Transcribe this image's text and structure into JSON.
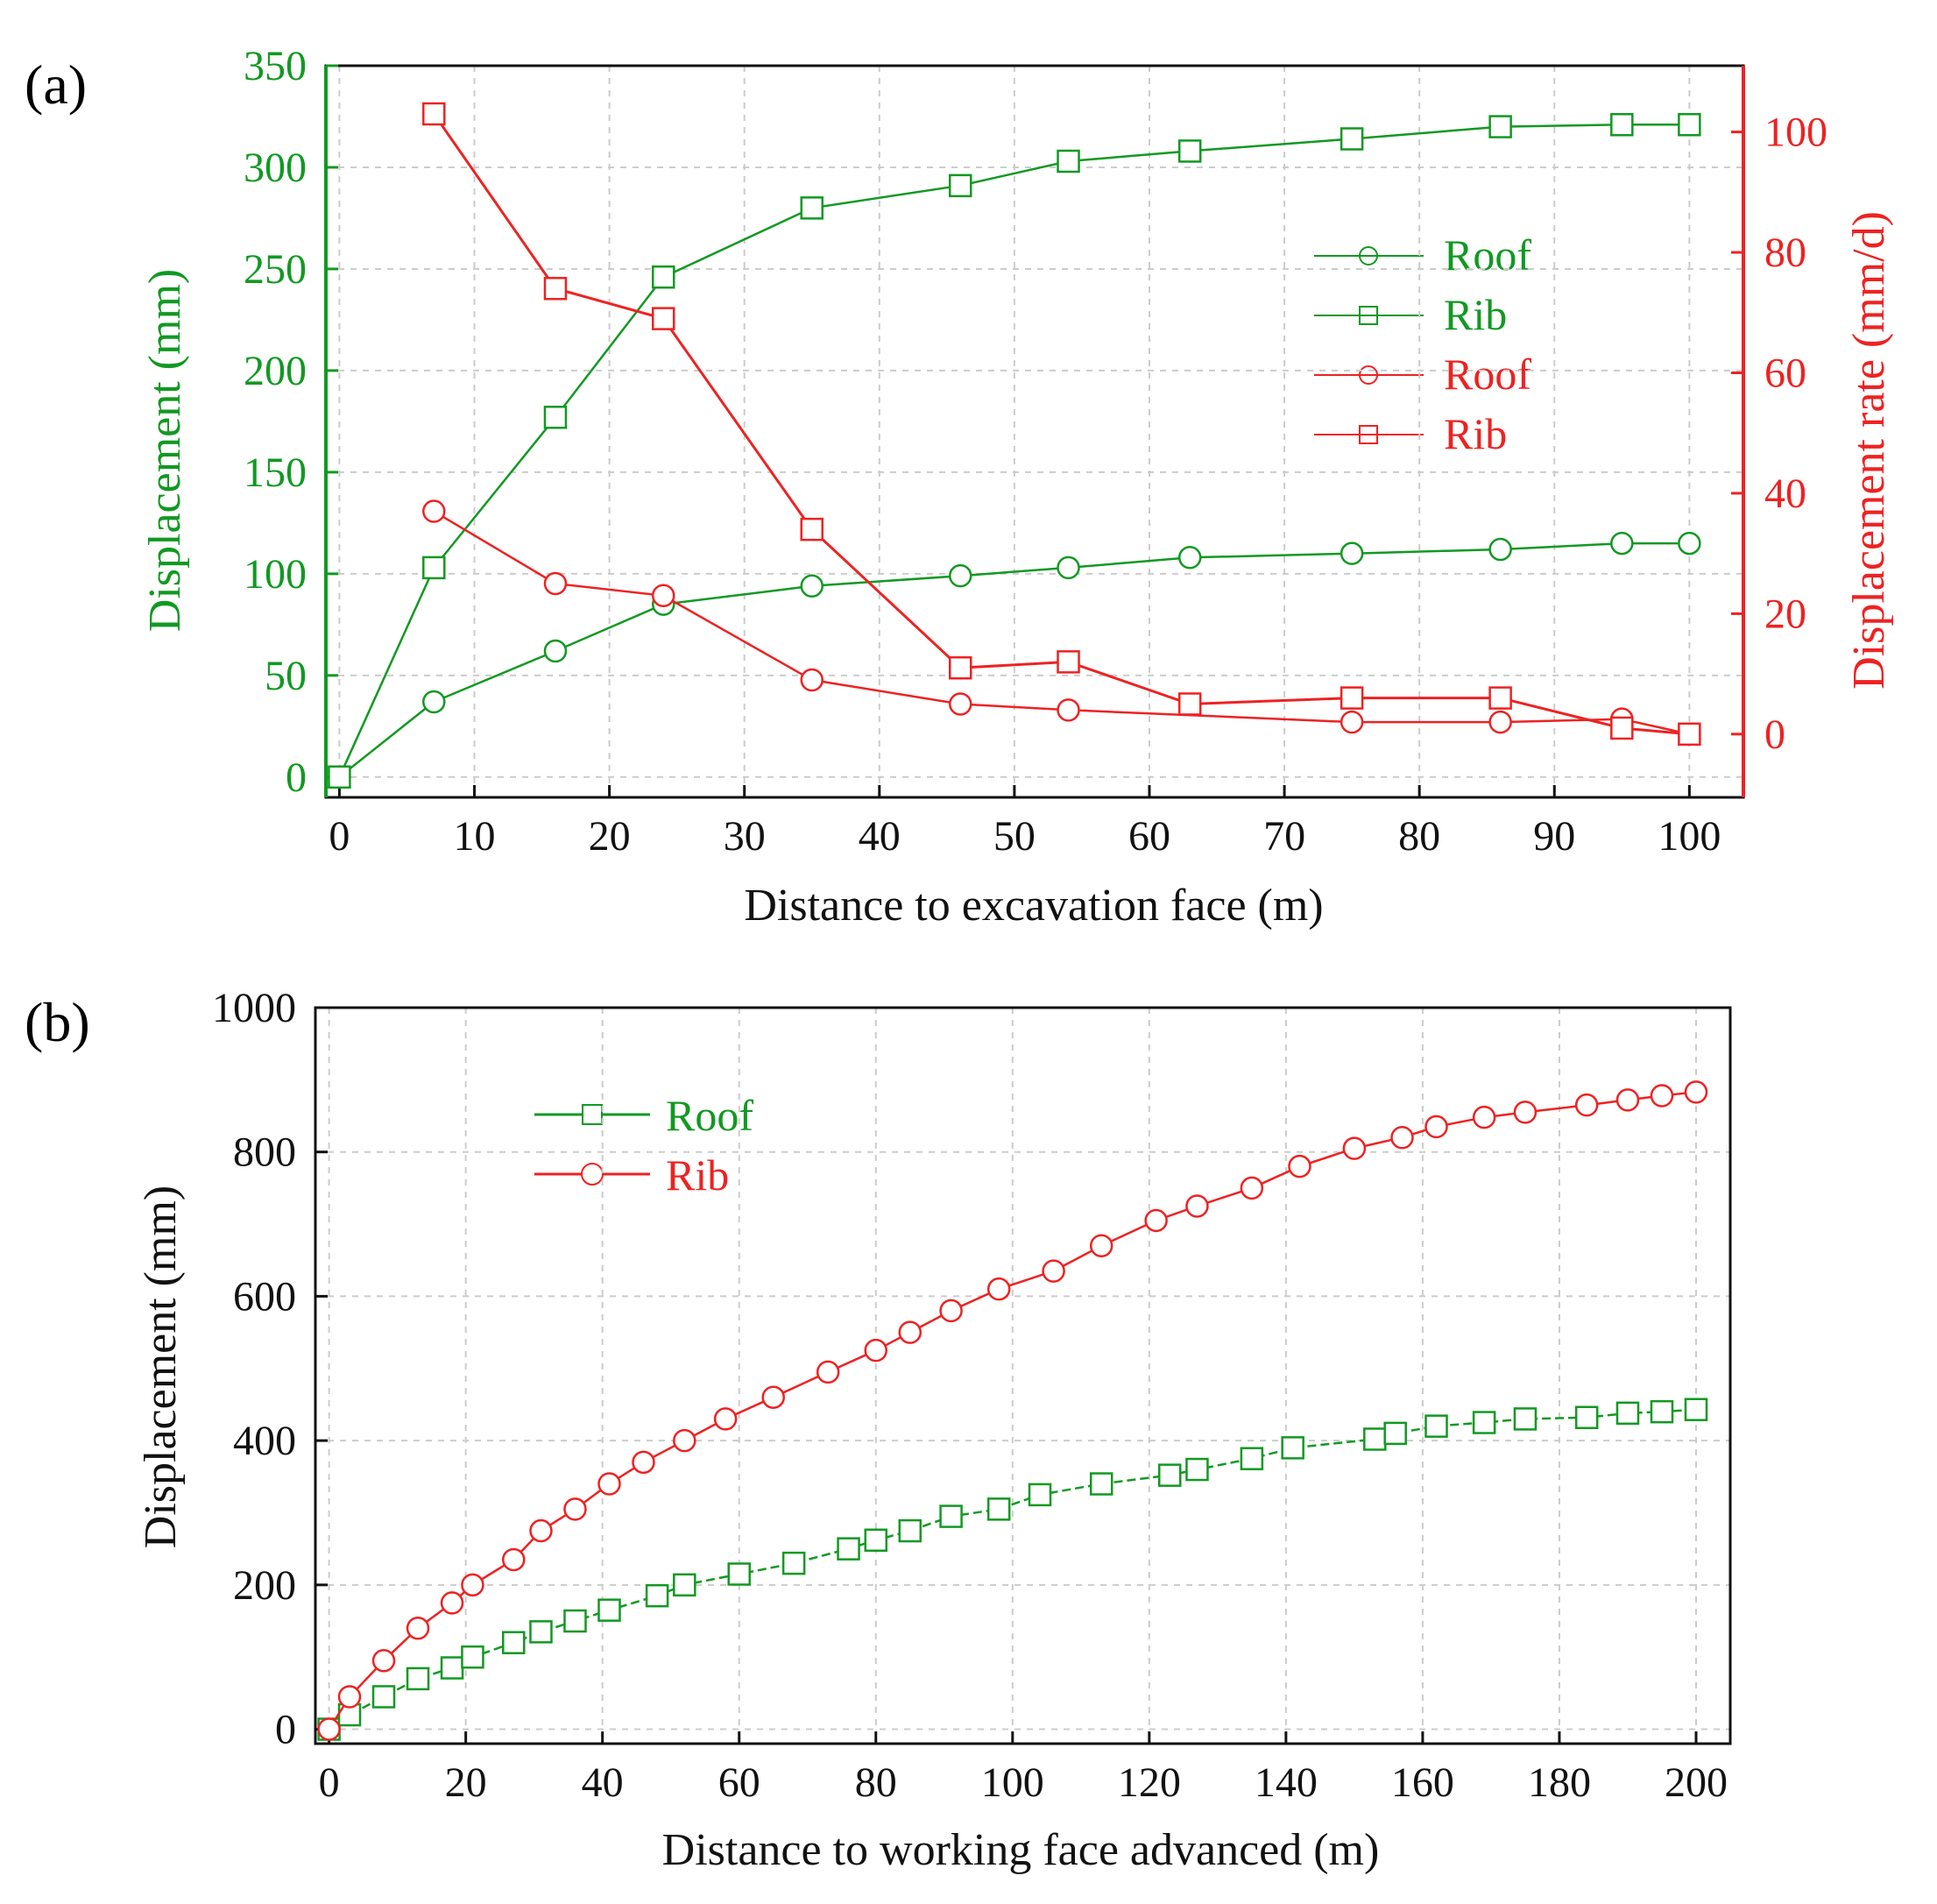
{
  "colors": {
    "green": "#119922",
    "red": "#ee2222",
    "black": "#111111",
    "grid": "#cccccc"
  },
  "chart_data": [
    {
      "panel_label": "(a)",
      "type": "line",
      "title": "",
      "xlabel": "Distance to excavation face (m)",
      "ylabel": "Displacement (mm)",
      "y2label": "Displacement rate (mm/d)",
      "xlim": [
        -1,
        104
      ],
      "ylim": [
        -10,
        350
      ],
      "y2lim": [
        -10.5,
        111
      ],
      "xticks": [
        "0",
        "10",
        "20",
        "30",
        "40",
        "50",
        "60",
        "70",
        "80",
        "90",
        "100"
      ],
      "yticks": [
        "0",
        "50",
        "100",
        "150",
        "200",
        "250",
        "300",
        "350"
      ],
      "y2ticks": [
        "0",
        "20",
        "40",
        "60",
        "80",
        "100"
      ],
      "grid": true,
      "legend_position": "upper-right",
      "series": [
        {
          "name": "Roof",
          "axis": "left",
          "color": "green",
          "marker": "circle",
          "x": [
            0,
            7,
            16,
            24,
            35,
            46,
            54,
            63,
            75,
            86,
            95,
            100
          ],
          "values": [
            0,
            37,
            62,
            85,
            94,
            99,
            103,
            108,
            110,
            112,
            115,
            115
          ]
        },
        {
          "name": "Rib",
          "axis": "left",
          "color": "green",
          "marker": "square",
          "x": [
            0,
            7,
            16,
            24,
            35,
            46,
            54,
            63,
            75,
            86,
            95,
            100
          ],
          "values": [
            0,
            103,
            177,
            246,
            280,
            291,
            303,
            308,
            314,
            320,
            321,
            321
          ]
        },
        {
          "name": "Roof",
          "axis": "right",
          "color": "red",
          "marker": "circle",
          "x": [
            7,
            16,
            24,
            35,
            46,
            54,
            75,
            86,
            95,
            100
          ],
          "values": [
            37,
            25,
            23,
            9,
            5,
            4,
            2,
            2,
            2.5,
            0
          ]
        },
        {
          "name": "Rib",
          "axis": "right",
          "color": "red",
          "marker": "square",
          "x": [
            7,
            16,
            24,
            35,
            46,
            54,
            63,
            75,
            86,
            95,
            100
          ],
          "values": [
            103,
            74,
            69,
            34,
            11,
            12,
            5,
            6,
            6,
            1,
            0
          ]
        }
      ]
    },
    {
      "panel_label": "(b)",
      "type": "line",
      "title": "",
      "xlabel": "Distance to working face advanced (m)",
      "ylabel": "Displacement (mm)",
      "xlim": [
        -2,
        205
      ],
      "ylim": [
        -20,
        1000
      ],
      "xticks": [
        "0",
        "20",
        "40",
        "60",
        "80",
        "100",
        "120",
        "140",
        "160",
        "180",
        "200"
      ],
      "yticks": [
        "0",
        "200",
        "400",
        "600",
        "800",
        "1000"
      ],
      "grid": true,
      "legend_position": "upper-left",
      "series": [
        {
          "name": "Roof",
          "color": "green",
          "marker": "square",
          "x": [
            0,
            3,
            8,
            13,
            18,
            21,
            27,
            31,
            36,
            41,
            48,
            52,
            60,
            68,
            76,
            80,
            85,
            91,
            98,
            104,
            113,
            123,
            127,
            135,
            141,
            153,
            156,
            162,
            169,
            175,
            184,
            190,
            195,
            200
          ],
          "values": [
            0,
            20,
            45,
            70,
            85,
            100,
            120,
            135,
            150,
            165,
            185,
            200,
            215,
            230,
            250,
            262,
            275,
            295,
            305,
            325,
            340,
            352,
            360,
            375,
            390,
            402,
            410,
            420,
            425,
            430,
            432,
            438,
            440,
            443
          ]
        },
        {
          "name": "Rib",
          "color": "red",
          "marker": "circle",
          "x": [
            0,
            3,
            8,
            13,
            18,
            21,
            27,
            31,
            36,
            41,
            46,
            52,
            58,
            65,
            73,
            80,
            85,
            91,
            98,
            106,
            113,
            121,
            127,
            135,
            142,
            150,
            157,
            162,
            169,
            175,
            184,
            190,
            195,
            200
          ],
          "values": [
            0,
            45,
            95,
            140,
            175,
            200,
            235,
            275,
            305,
            340,
            370,
            400,
            430,
            460,
            495,
            525,
            550,
            580,
            610,
            635,
            670,
            705,
            725,
            750,
            780,
            805,
            820,
            835,
            848,
            855,
            865,
            872,
            878,
            883
          ]
        }
      ]
    }
  ]
}
